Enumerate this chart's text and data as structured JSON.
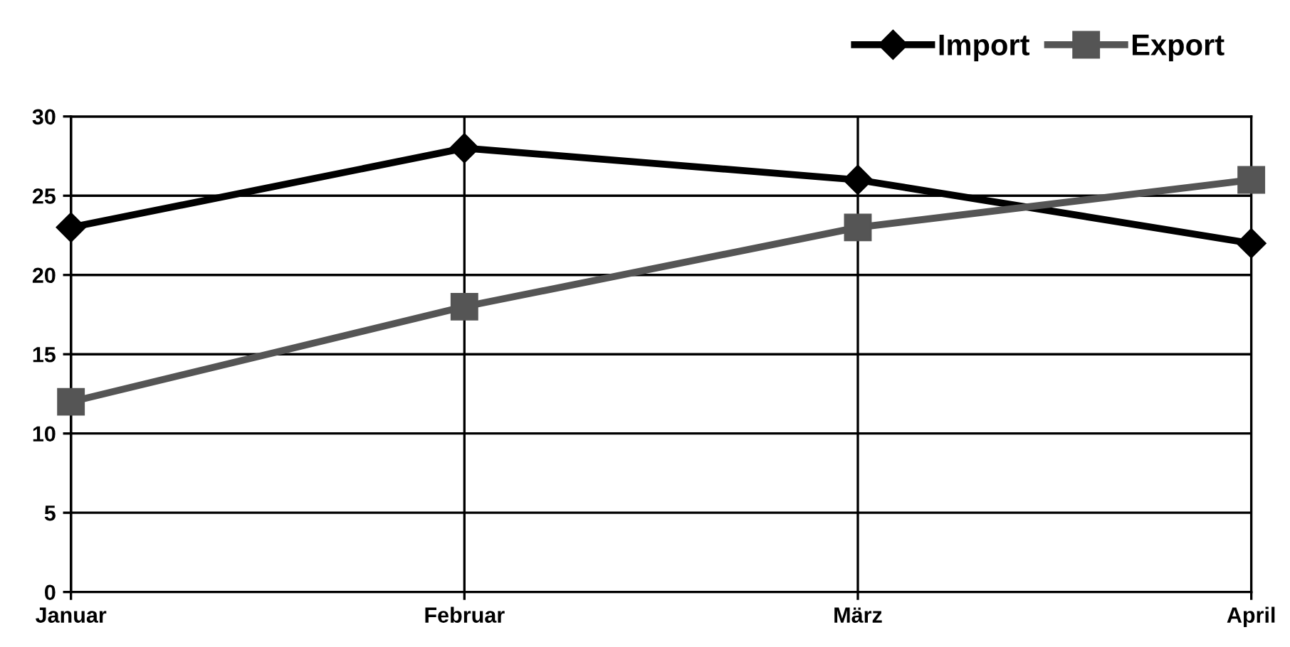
{
  "chart_data": {
    "type": "line",
    "categories": [
      "Januar",
      "Februar",
      "März",
      "April"
    ],
    "series": [
      {
        "name": "Import",
        "color": "#000000",
        "marker": "diamond",
        "values": [
          23,
          28,
          26,
          22
        ]
      },
      {
        "name": "Export",
        "color": "#555555",
        "marker": "square",
        "values": [
          12,
          18,
          23,
          26
        ]
      }
    ],
    "ylim": [
      0,
      30
    ],
    "yticks": [
      0,
      5,
      10,
      15,
      20,
      25,
      30
    ],
    "grid": true,
    "legend": "top right",
    "line_style": "solid"
  }
}
